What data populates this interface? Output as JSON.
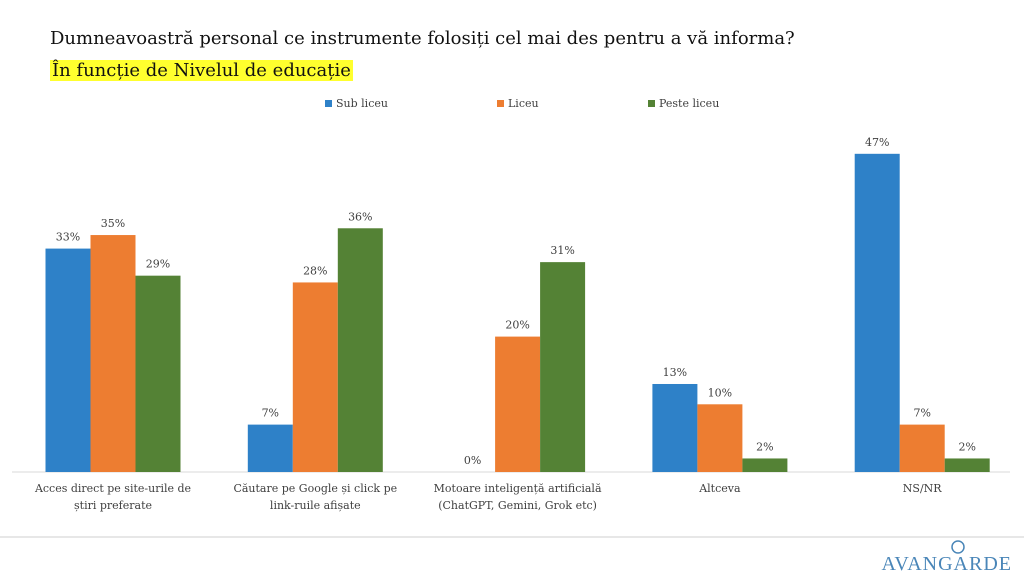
{
  "chart_data": {
    "type": "bar",
    "title": "Dumneavoastră personal ce instrumente folosiți cel mai des pentru a vă informa?",
    "subtitle": "În funcție de Nivelul de educație",
    "categories": [
      "Acces direct pe site-urile de știri preferate",
      "Căutare pe Google și click pe link-ruile afișate",
      "Motoare inteligență artificială (ChatGPT, Gemini, Grok etc)",
      "Altceva",
      "NS/NR"
    ],
    "series": [
      {
        "name": "Sub liceu",
        "color": "#2e81c8",
        "values": [
          33,
          7,
          0,
          13,
          47
        ],
        "value_labels": [
          "33%",
          "7%",
          "0%",
          "13%",
          "47%"
        ]
      },
      {
        "name": "Liceu",
        "color": "#ed7d31",
        "values": [
          35,
          28,
          20,
          10,
          7
        ],
        "value_labels": [
          "35%",
          "28%",
          "20%",
          "10%",
          "7%"
        ]
      },
      {
        "name": "Peste liceu",
        "color": "#548235",
        "values": [
          29,
          36,
          31,
          2,
          2
        ],
        "value_labels": [
          "29%",
          "36%",
          "31%",
          "2%",
          "2%"
        ]
      }
    ],
    "legend_position": "top",
    "logo": "AVANGARDE"
  }
}
